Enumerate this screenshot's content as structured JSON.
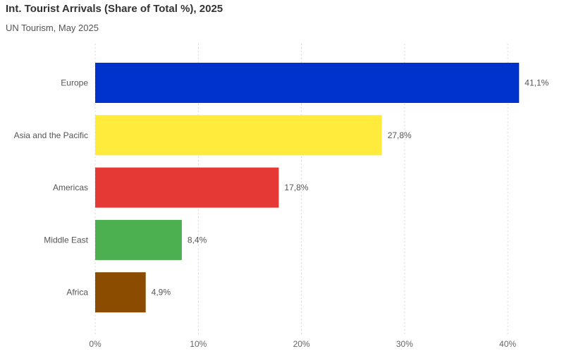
{
  "chart_data": {
    "type": "bar",
    "orientation": "horizontal",
    "title": "Int. Tourist Arrivals (Share of Total %), 2025",
    "subtitle": "UN Tourism, May 2025",
    "categories": [
      "Europe",
      "Asia and the Pacific",
      "Americas",
      "Middle East",
      "Africa"
    ],
    "values": [
      41.1,
      27.8,
      17.8,
      8.4,
      4.9
    ],
    "value_labels": [
      "41,1%",
      "27,8%",
      "17,8%",
      "8,4%",
      "4,9%"
    ],
    "colors": [
      "#0033cc",
      "#ffeb3b",
      "#e53935",
      "#4caf50",
      "#8b4c00"
    ],
    "x_ticks": [
      0,
      10,
      20,
      30,
      40
    ],
    "x_tick_labels": [
      "0%",
      "10%",
      "20%",
      "30%",
      "40%"
    ],
    "xlim": [
      0,
      42
    ],
    "xlabel": "",
    "ylabel": "",
    "grid": "vertical-dotted",
    "legend": "none"
  }
}
